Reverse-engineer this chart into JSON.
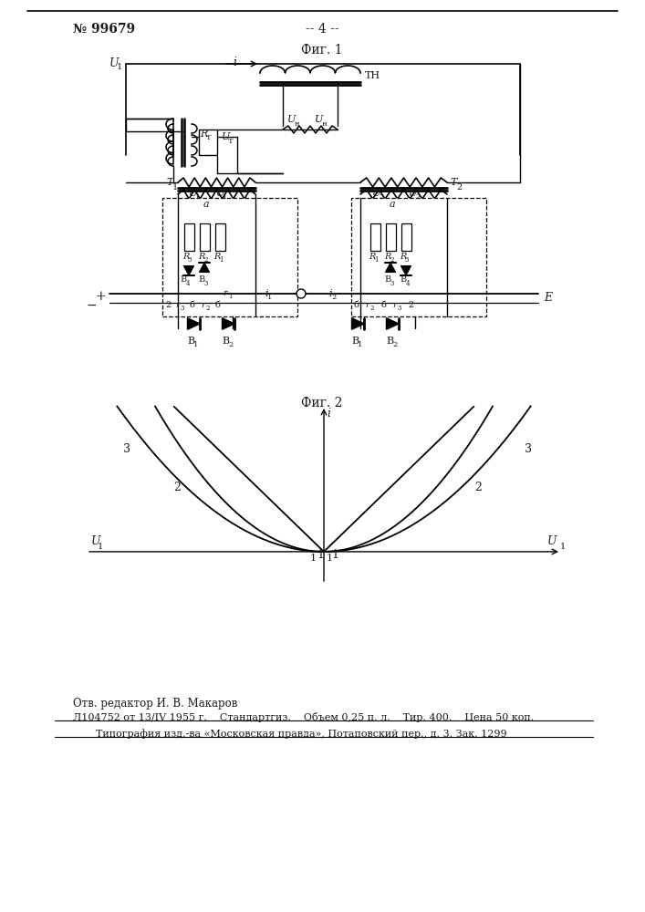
{
  "page_color": "#ffffff",
  "title_num": "№ 99679",
  "page_num": "-- 4 --",
  "fig1_label": "Фиг. 1",
  "fig2_label": "Фиг. 2",
  "footer_line1": "Отв. редактор И. В. Макаров",
  "footer_line2": "Л104752 от 13/IV 1955 г.    Стандартгиз.    Объем 0,25 п. л.    Тир. 400.    Цена 50 коп.",
  "footer_line3": "Типография изд.-ва «Московская правда», Потаповский пер., д. 3. Зак. 1299"
}
